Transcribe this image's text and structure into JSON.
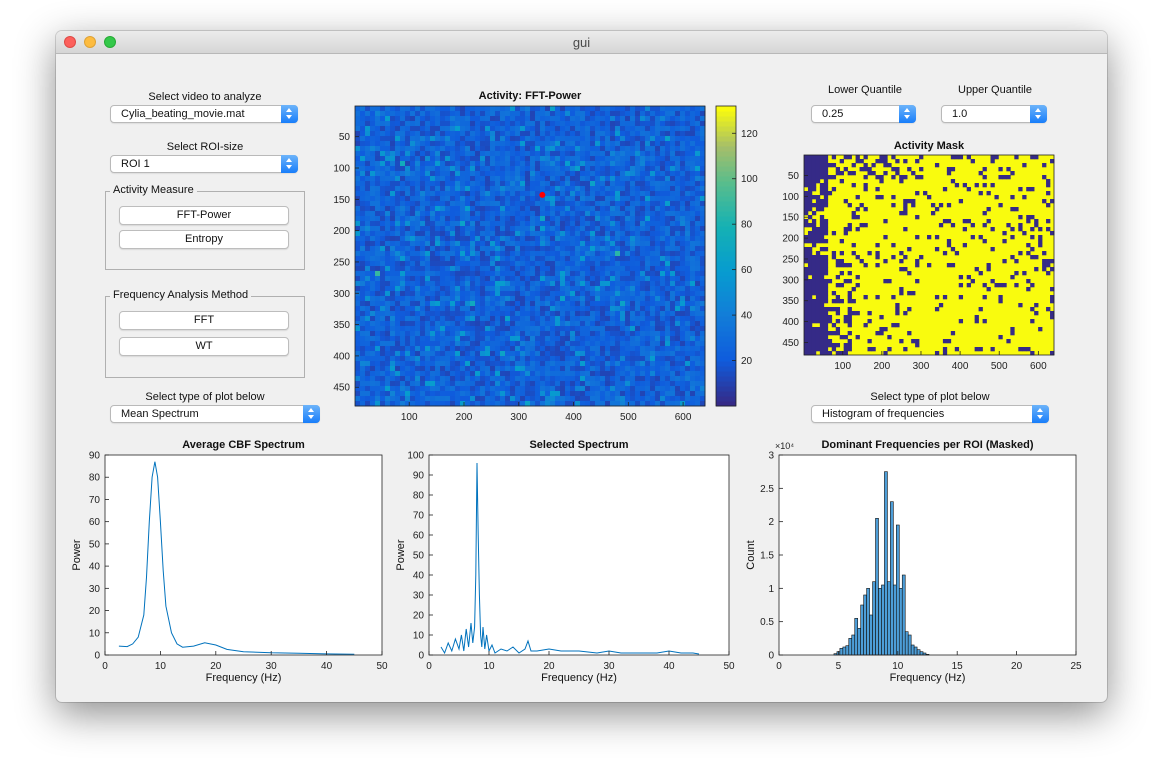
{
  "window": {
    "title": "gui"
  },
  "controls": {
    "video_label": "Select video to analyze",
    "video_value": "Cylia_beating_movie.mat",
    "roi_label": "Select ROI-size",
    "roi_value": "ROI 1",
    "activity_title": "Activity Measure",
    "activity_buttons": [
      "FFT-Power",
      "Entropy"
    ],
    "freq_title": "Frequency Analysis Method",
    "freq_buttons": [
      "FFT",
      "WT"
    ],
    "plot_type_label_left": "Select type of plot below",
    "plot_type_value_left": "Mean Spectrum",
    "lower_quantile_label": "Lower Quantile",
    "lower_quantile_value": "0.25",
    "upper_quantile_label": "Upper Quantile",
    "upper_quantile_value": "1.0",
    "plot_type_label_right": "Select type of plot below",
    "plot_type_value_right": "Histogram of frequencies"
  },
  "colors": {
    "parula_dark": "#352a87",
    "parula_yellow": "#f9fb0e",
    "line_blue": "#0072bd",
    "selected_marker": "#ff0000"
  },
  "chart_data": [
    {
      "type": "heatmap",
      "title": "Activity: FFT-Power",
      "x_ticks": [
        100,
        200,
        300,
        400,
        500,
        600
      ],
      "y_ticks": [
        50,
        100,
        150,
        200,
        250,
        300,
        350,
        400,
        450
      ],
      "xlim": [
        1,
        640
      ],
      "ylim": [
        1,
        480
      ],
      "colorbar_ticks": [
        20,
        40,
        60,
        80,
        100,
        120
      ],
      "colorbar_range": [
        0,
        132
      ],
      "marker": {
        "x": 343,
        "y": 143
      }
    },
    {
      "type": "heatmap",
      "title": "Activity Mask",
      "x_ticks": [
        100,
        200,
        300,
        400,
        500,
        600
      ],
      "y_ticks": [
        50,
        100,
        150,
        200,
        250,
        300,
        350,
        400,
        450
      ],
      "xlim": [
        1,
        640
      ],
      "ylim": [
        1,
        480
      ]
    },
    {
      "type": "line",
      "title": "Average CBF Spectrum",
      "xlabel": "Frequency (Hz)",
      "ylabel": "Power",
      "xlim": [
        0,
        50
      ],
      "ylim": [
        0,
        90
      ],
      "x_ticks": [
        0,
        10,
        20,
        30,
        40,
        50
      ],
      "y_ticks": [
        0,
        10,
        20,
        30,
        40,
        50,
        60,
        70,
        80,
        90
      ],
      "x": [
        2.5,
        4,
        5,
        6,
        7,
        7.5,
        8,
        8.5,
        9,
        9.5,
        10,
        10.5,
        11,
        12,
        13,
        14,
        16,
        18,
        20,
        22,
        25,
        30,
        35,
        40,
        45
      ],
      "y": [
        4,
        3.8,
        5,
        8,
        18,
        35,
        60,
        80,
        87,
        80,
        60,
        38,
        22,
        10,
        5,
        3.5,
        4,
        5.5,
        4.5,
        2.5,
        1.5,
        1,
        0.8,
        0.5,
        0.3
      ]
    },
    {
      "type": "line",
      "title": "Selected Spectrum",
      "xlabel": "Frequency (Hz)",
      "ylabel": "Power",
      "xlim": [
        0,
        50
      ],
      "ylim": [
        0,
        100
      ],
      "x_ticks": [
        0,
        10,
        20,
        30,
        40,
        50
      ],
      "y_ticks": [
        0,
        10,
        20,
        30,
        40,
        50,
        60,
        70,
        80,
        90,
        100
      ],
      "x": [
        2,
        2.6,
        3.2,
        3.8,
        4.4,
        5,
        5.4,
        5.8,
        6.2,
        6.6,
        7,
        7.3,
        7.6,
        7.8,
        8,
        8.2,
        8.4,
        8.6,
        8.8,
        9,
        9.3,
        9.6,
        10,
        10.5,
        11,
        12,
        13,
        14,
        15,
        16,
        16.5,
        17,
        18,
        20,
        22,
        25,
        28,
        30,
        32,
        35,
        38,
        40,
        42,
        44,
        45
      ],
      "y": [
        4,
        1,
        6,
        2,
        8,
        3,
        10,
        2,
        13,
        4,
        16,
        6,
        14,
        40,
        96,
        60,
        30,
        10,
        4,
        14,
        3,
        10,
        2,
        5,
        1,
        3,
        2,
        4,
        1,
        3,
        7,
        2,
        2,
        3,
        2,
        2,
        1,
        2,
        1,
        1,
        1,
        2,
        1,
        1,
        0.5
      ]
    },
    {
      "type": "bar",
      "title": "Dominant Frequencies per ROI (Masked)",
      "xlabel": "Frequency (Hz)",
      "ylabel": "Count",
      "y_exponent": "×10⁴",
      "xlim": [
        0,
        25
      ],
      "ylim": [
        0,
        3
      ],
      "x_ticks": [
        0,
        5,
        10,
        15,
        20,
        25
      ],
      "y_ticks": [
        0,
        0.5,
        1,
        1.5,
        2,
        2.5,
        3
      ],
      "bin_width": 0.25,
      "x": [
        4.75,
        5,
        5.25,
        5.5,
        5.75,
        6,
        6.25,
        6.5,
        6.75,
        7,
        7.25,
        7.5,
        7.75,
        8,
        8.25,
        8.5,
        8.75,
        9,
        9.25,
        9.5,
        9.75,
        10,
        10.25,
        10.5,
        10.75,
        11,
        11.25,
        11.5,
        11.75,
        12,
        12.25,
        12.5
      ],
      "values": [
        0.02,
        0.05,
        0.1,
        0.12,
        0.14,
        0.25,
        0.3,
        0.55,
        0.4,
        0.75,
        0.9,
        1.0,
        0.6,
        1.1,
        2.05,
        1.0,
        1.05,
        2.75,
        1.1,
        2.3,
        1.05,
        1.95,
        1.0,
        1.2,
        0.35,
        0.3,
        0.15,
        0.12,
        0.08,
        0.05,
        0.03,
        0.01
      ]
    }
  ]
}
